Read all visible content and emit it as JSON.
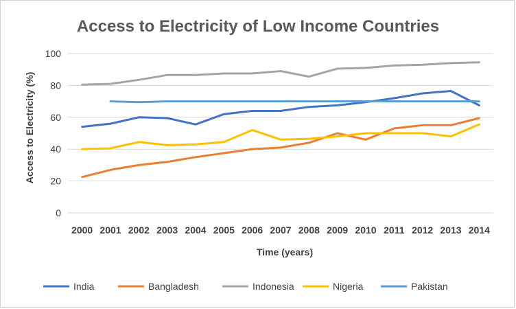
{
  "chart_data": {
    "type": "line",
    "title": "Access to Electricity of Low Income Countries",
    "xlabel": "Time (years)",
    "ylabel": "Access  to Electricity (%)",
    "ylim": [
      0,
      100
    ],
    "yticks": [
      0,
      20,
      40,
      60,
      80,
      100
    ],
    "grid": true,
    "legend": "bottom",
    "x": [
      "2000",
      "2001",
      "2002",
      "2003",
      "2004",
      "2005",
      "2006",
      "2007",
      "2008",
      "2009",
      "2010",
      "2011",
      "2012",
      "2013",
      "2014"
    ],
    "series": [
      {
        "name": "India",
        "color": "#4472C4",
        "values": [
          54,
          56,
          60,
          59.5,
          55.5,
          62,
          64,
          64,
          66.5,
          67.5,
          69.5,
          72,
          75,
          76.5,
          67.5
        ]
      },
      {
        "name": "Bangladesh",
        "color": "#ED7D31",
        "values": [
          22.5,
          27,
          30,
          32,
          35,
          37.5,
          40,
          41,
          44,
          50,
          46,
          53,
          55,
          55,
          59.5
        ]
      },
      {
        "name": "Indonesia",
        "color": "#A5A5A5",
        "values": [
          80.5,
          81,
          83.5,
          86.5,
          86.5,
          87.5,
          87.5,
          89,
          85.5,
          90.5,
          91,
          92.5,
          93,
          94,
          94.5
        ]
      },
      {
        "name": "Nigeria",
        "color": "#FFC000",
        "values": [
          40,
          40.5,
          44.5,
          42.5,
          43,
          44.5,
          52,
          46,
          46.5,
          48,
          50,
          50,
          50,
          48,
          55.5
        ]
      },
      {
        "name": "Pakistan",
        "color": "#5B9BD5",
        "values": [
          null,
          70,
          69.5,
          70,
          70,
          70,
          70,
          70,
          70,
          70,
          70,
          70,
          70,
          70,
          70
        ]
      }
    ]
  }
}
